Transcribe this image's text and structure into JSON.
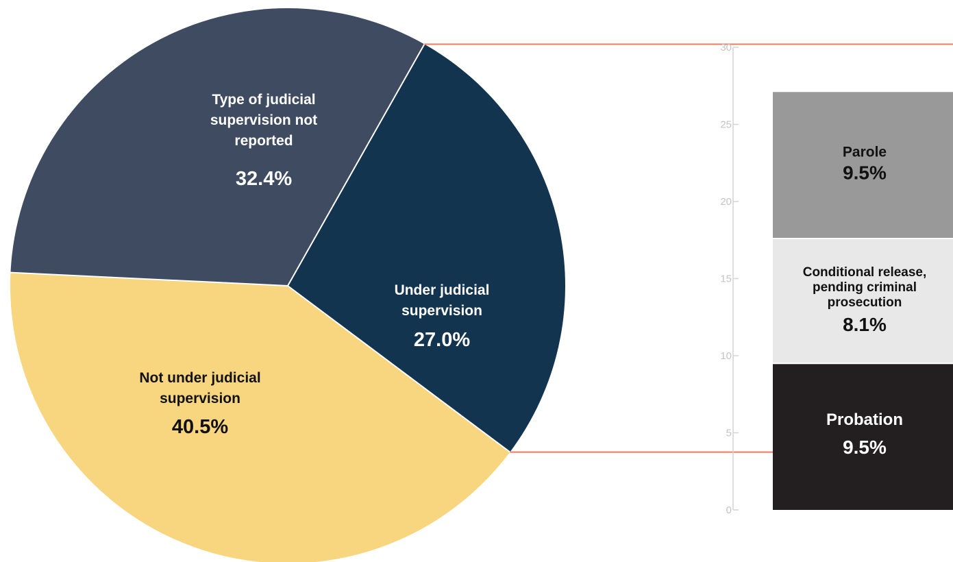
{
  "chart_data": [
    {
      "type": "pie",
      "slices": [
        {
          "label": "Under judicial supervision",
          "value": 27.0,
          "display": "27.0%",
          "color": "#13344f",
          "text_color": "#ffffff"
        },
        {
          "label": "Not under judicial supervision",
          "value": 40.5,
          "display": "40.5%",
          "color": "#f8d57f",
          "text_color": "#111111"
        },
        {
          "label": "Type of judicial supervision not reported",
          "value": 32.4,
          "display": "32.4%",
          "color": "#3e4b61",
          "text_color": "#ffffff"
        }
      ]
    },
    {
      "type": "bar",
      "stacked": true,
      "ylim": [
        0,
        30
      ],
      "yticks": [
        0,
        5,
        10,
        15,
        20,
        25,
        30
      ],
      "segments": [
        {
          "label": "Probation",
          "value": 9.5,
          "display": "9.5%",
          "color": "#231f20",
          "text_color": "#ffffff"
        },
        {
          "label": "Conditional release, pending criminal prosecution",
          "value": 8.1,
          "display": "8.1%",
          "color": "#e8e8e8",
          "text_color": "#111111"
        },
        {
          "label": "Parole",
          "value": 9.5,
          "display": "9.5%",
          "color": "#999999",
          "text_color": "#111111"
        }
      ]
    }
  ],
  "connector_color": "#f07b5c"
}
